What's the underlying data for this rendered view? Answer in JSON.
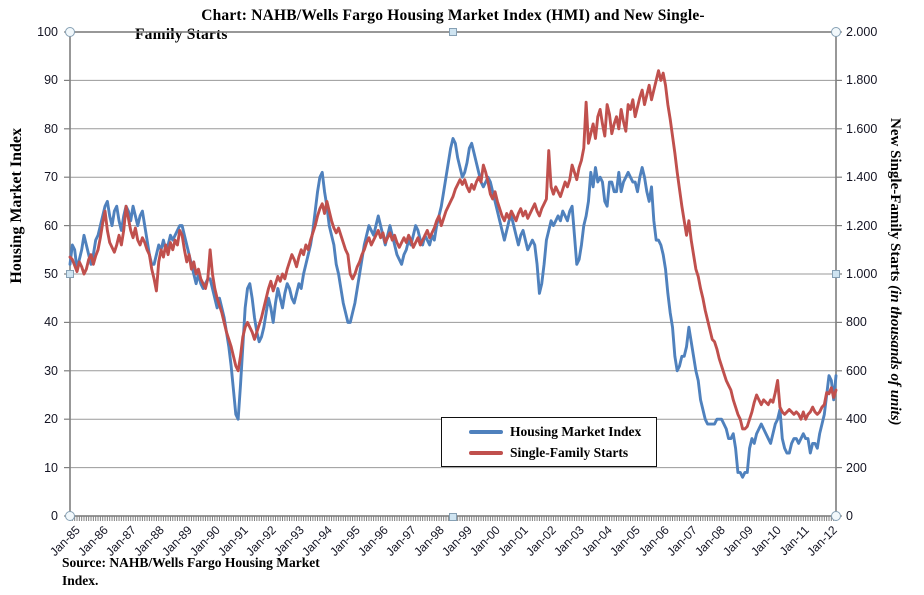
{
  "title": {
    "line1": "Chart:  NAHB/Wells Fargo Housing Market Index (HMI) and New Single-",
    "line2": "Family Starts"
  },
  "source_note": "Source: NAHB/Wells Fargo Housing Market Index.",
  "legend": {
    "items": [
      {
        "label": "Housing Market Index",
        "color": "#4F81BD"
      },
      {
        "label": "Single-Family Starts",
        "color": "#C0504D"
      }
    ]
  },
  "colors": {
    "hmi_line": "#4F81BD",
    "starts_line": "#C0504D",
    "gridline": "#9a9a9a",
    "axis": "#7f7f7f",
    "tick_text": "#141423"
  },
  "chart_data": {
    "type": "line",
    "frequency": "monthly",
    "x_start": "Jan-1985",
    "x_end": "May-2012",
    "grid": "horizontal",
    "legend_position": "inside-lower-middle",
    "axes": {
      "left": {
        "title": "Housing Market Index",
        "min": 0,
        "max": 100,
        "step": 10,
        "tick_labels": [
          "100",
          "90",
          "80",
          "70",
          "60",
          "50",
          "40",
          "30",
          "20",
          "10",
          "0"
        ]
      },
      "right": {
        "title_main": "New Single-Family Starts ",
        "title_unit": "(in thousands  of units)",
        "min": 0,
        "max": 2000,
        "step": 200,
        "tick_labels": [
          "2.000",
          "1.800",
          "1.600",
          "1.400",
          "1.200",
          "1.000",
          "800",
          "600",
          "400",
          "200",
          "0"
        ]
      },
      "x": {
        "tick_labels": [
          "Jan-85",
          "Jan-86",
          "Jan-87",
          "Jan-88",
          "Jan-89",
          "Jan-90",
          "Jan-91",
          "Jan-92",
          "Jan-93",
          "Jan-94",
          "Jan-95",
          "Jan-96",
          "Jan-97",
          "Jan-98",
          "Jan-99",
          "Jan-00",
          "Jan-01",
          "Jan-02",
          "Jan-03",
          "Jan-04",
          "Jan-05",
          "Jan-06",
          "Jan-07",
          "Jan-08",
          "Jan-09",
          "Jan-10",
          "Jan-11",
          "Jan-12"
        ],
        "months_per_label": 12
      }
    },
    "series": [
      {
        "name": "Housing Market Index",
        "axis": "left",
        "color": "#4F81BD",
        "values": [
          52,
          56,
          55,
          51,
          53,
          55,
          58,
          56,
          54,
          52,
          54,
          57,
          58,
          60,
          62,
          64,
          65,
          62,
          60,
          63,
          64,
          61,
          59,
          62,
          64,
          63,
          61,
          64,
          62,
          60,
          62,
          63,
          60,
          57,
          54,
          52,
          52,
          54,
          56,
          55,
          57,
          55,
          56,
          58,
          57,
          58,
          59,
          60,
          60,
          58,
          56,
          54,
          52,
          50,
          48,
          50,
          48,
          47,
          48,
          49,
          49,
          47,
          45,
          43,
          45,
          43,
          41,
          38,
          35,
          31,
          26,
          21,
          20,
          27,
          35,
          43,
          47,
          48,
          45,
          41,
          38,
          36,
          37,
          39,
          42,
          45,
          43,
          40,
          44,
          47,
          45,
          43,
          46,
          48,
          47,
          45,
          44,
          46,
          48,
          47,
          50,
          52,
          54,
          56,
          59,
          63,
          67,
          70,
          71,
          67,
          64,
          60,
          58,
          56,
          52,
          50,
          47,
          44,
          42,
          40,
          40,
          42,
          44,
          47,
          50,
          53,
          56,
          58,
          60,
          59,
          58,
          60,
          62,
          60,
          58,
          56,
          58,
          60,
          58,
          56,
          54,
          53,
          52,
          54,
          55,
          57,
          56,
          58,
          60,
          59,
          57,
          56,
          58,
          57,
          56,
          58,
          57,
          60,
          62,
          64,
          67,
          70,
          73,
          76,
          78,
          77,
          74,
          72,
          70,
          71,
          73,
          76,
          77,
          75,
          73,
          71,
          69,
          68,
          69,
          70,
          69,
          67,
          65,
          63,
          61,
          59,
          57,
          59,
          61,
          62,
          60,
          58,
          56,
          58,
          59,
          57,
          55,
          56,
          57,
          56,
          52,
          46,
          48,
          52,
          57,
          59,
          61,
          60,
          61,
          62,
          61,
          63,
          62,
          61,
          63,
          64,
          58,
          52,
          53,
          56,
          60,
          62,
          65,
          71,
          68,
          72,
          69,
          70,
          69,
          65,
          64,
          69,
          69,
          67,
          67,
          71,
          67,
          69,
          70,
          71,
          70,
          69,
          69,
          67,
          70,
          72,
          70,
          67,
          65,
          68,
          61,
          57,
          57,
          56,
          54,
          51,
          46,
          42,
          39,
          33,
          30,
          31,
          33,
          33,
          35,
          39,
          36,
          33,
          30,
          28,
          24,
          22,
          20,
          19,
          19,
          19,
          19,
          20,
          20,
          20,
          19,
          18,
          16,
          16,
          17,
          14,
          9,
          9,
          8,
          9,
          9,
          14,
          16,
          15,
          17,
          18,
          19,
          18,
          17,
          16,
          15,
          17,
          19,
          20,
          22,
          16,
          14,
          13,
          13,
          15,
          16,
          16,
          15,
          16,
          17,
          16,
          16,
          13,
          15,
          15,
          14,
          17,
          19,
          21,
          25,
          29,
          28,
          24,
          29
        ]
      },
      {
        "name": "Single-Family Starts",
        "axis": "right",
        "color": "#C0504D",
        "values": [
          1070,
          1060,
          1035,
          1010,
          1050,
          1030,
          1000,
          1020,
          1060,
          1080,
          1040,
          1075,
          1100,
          1150,
          1210,
          1260,
          1180,
          1130,
          1110,
          1090,
          1120,
          1160,
          1120,
          1180,
          1280,
          1230,
          1180,
          1150,
          1190,
          1140,
          1120,
          1150,
          1130,
          1100,
          1080,
          1020,
          980,
          930,
          1050,
          1100,
          1070,
          1120,
          1080,
          1130,
          1100,
          1140,
          1120,
          1180,
          1160,
          1100,
          1050,
          1080,
          1020,
          1050,
          1000,
          1020,
          980,
          960,
          940,
          980,
          1100,
          1000,
          940,
          900,
          870,
          840,
          800,
          760,
          730,
          700,
          660,
          620,
          600,
          660,
          740,
          780,
          800,
          780,
          760,
          730,
          760,
          790,
          820,
          860,
          900,
          940,
          970,
          930,
          960,
          990,
          970,
          1000,
          980,
          1020,
          1050,
          1080,
          1060,
          1030,
          1070,
          1100,
          1080,
          1120,
          1100,
          1140,
          1170,
          1200,
          1240,
          1270,
          1290,
          1250,
          1300,
          1260,
          1220,
          1190,
          1170,
          1190,
          1160,
          1130,
          1100,
          1080,
          1000,
          980,
          1000,
          1030,
          1050,
          1080,
          1100,
          1130,
          1150,
          1120,
          1140,
          1160,
          1180,
          1150,
          1170,
          1130,
          1150,
          1170,
          1140,
          1160,
          1130,
          1110,
          1130,
          1150,
          1130,
          1160,
          1140,
          1110,
          1130,
          1150,
          1120,
          1140,
          1160,
          1180,
          1150,
          1170,
          1190,
          1220,
          1240,
          1200,
          1230,
          1260,
          1280,
          1300,
          1320,
          1350,
          1370,
          1390,
          1370,
          1390,
          1360,
          1340,
          1370,
          1350,
          1380,
          1400,
          1380,
          1450,
          1420,
          1380,
          1330,
          1310,
          1340,
          1300,
          1270,
          1240,
          1220,
          1250,
          1230,
          1260,
          1240,
          1220,
          1250,
          1270,
          1240,
          1260,
          1230,
          1250,
          1270,
          1290,
          1260,
          1240,
          1270,
          1290,
          1310,
          1510,
          1360,
          1330,
          1360,
          1340,
          1320,
          1350,
          1380,
          1360,
          1390,
          1450,
          1420,
          1390,
          1440,
          1470,
          1520,
          1710,
          1540,
          1580,
          1620,
          1560,
          1650,
          1680,
          1620,
          1570,
          1700,
          1660,
          1580,
          1620,
          1650,
          1600,
          1680,
          1630,
          1590,
          1700,
          1680,
          1720,
          1650,
          1690,
          1730,
          1760,
          1700,
          1740,
          1780,
          1720,
          1760,
          1800,
          1840,
          1800,
          1830,
          1780,
          1700,
          1640,
          1570,
          1500,
          1420,
          1350,
          1280,
          1220,
          1160,
          1220,
          1140,
          1080,
          1020,
          990,
          940,
          900,
          850,
          810,
          770,
          730,
          720,
          690,
          650,
          620,
          590,
          560,
          540,
          520,
          480,
          450,
          420,
          400,
          360,
          360,
          370,
          400,
          430,
          470,
          500,
          480,
          460,
          480,
          470,
          460,
          480,
          470,
          510,
          560,
          450,
          430,
          420,
          430,
          440,
          430,
          420,
          430,
          420,
          400,
          430,
          400,
          420,
          430,
          450,
          430,
          420,
          430,
          450,
          460,
          510,
          505,
          530,
          490,
          520
        ]
      }
    ]
  }
}
